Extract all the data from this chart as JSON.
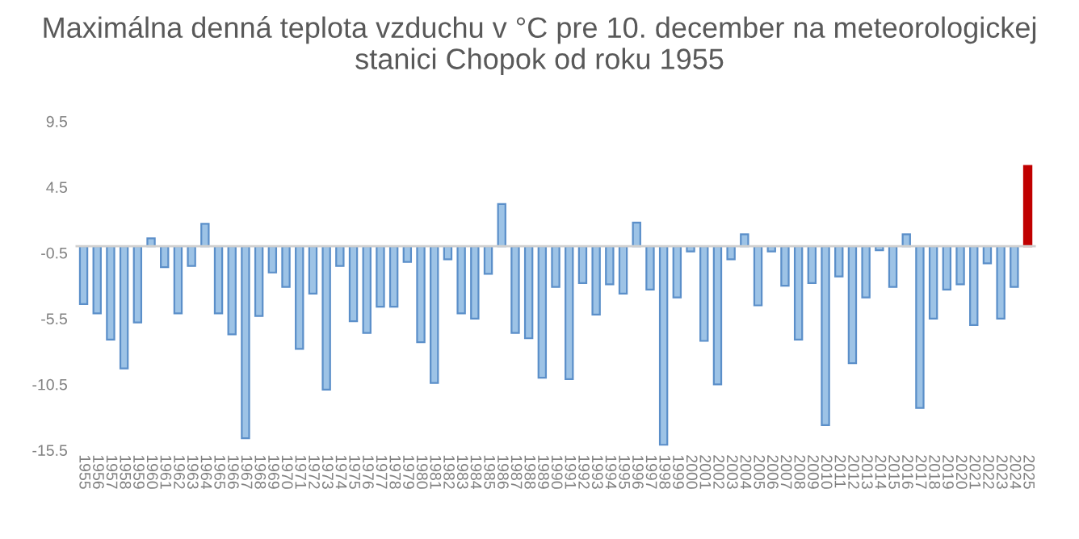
{
  "chart_data": {
    "type": "bar",
    "title": "Maximálna denná teplota vzduchu v °C pre 10. december na meteorologickej stanici Chopok od roku 1955",
    "categories": [
      "1955",
      "1956",
      "1957",
      "1958",
      "1959",
      "1960",
      "1961",
      "1962",
      "1963",
      "1964",
      "1965",
      "1966",
      "1967",
      "1968",
      "1969",
      "1970",
      "1971",
      "1972",
      "1973",
      "1974",
      "1975",
      "1976",
      "1977",
      "1978",
      "1979",
      "1980",
      "1981",
      "1982",
      "1983",
      "1984",
      "1985",
      "1986",
      "1987",
      "1988",
      "1989",
      "1990",
      "1991",
      "1992",
      "1993",
      "1994",
      "1995",
      "1996",
      "1997",
      "1998",
      "1999",
      "2000",
      "2001",
      "2002",
      "2003",
      "2004",
      "2005",
      "2006",
      "2007",
      "2008",
      "2009",
      "2010",
      "2011",
      "2012",
      "2013",
      "2014",
      "2015",
      "2016",
      "2017",
      "2018",
      "2019",
      "2020",
      "2021",
      "2022",
      "2023",
      "2024",
      "2025"
    ],
    "values": [
      -4.4,
      -5.1,
      -7.1,
      -9.3,
      -5.8,
      0.6,
      -1.6,
      -5.1,
      -1.5,
      1.7,
      -5.1,
      -6.7,
      -14.6,
      -5.3,
      -2.0,
      -3.1,
      -7.8,
      -3.6,
      -10.9,
      -1.5,
      -5.7,
      -6.6,
      -4.6,
      -4.6,
      -1.2,
      -7.3,
      -10.4,
      -1.0,
      -5.1,
      -5.5,
      -2.1,
      3.2,
      -6.6,
      -7.0,
      -10.0,
      -3.1,
      -10.1,
      -2.8,
      -5.2,
      -2.9,
      -3.6,
      1.8,
      -3.3,
      -15.1,
      -3.9,
      -0.4,
      -7.2,
      -10.5,
      -1.0,
      0.9,
      -4.5,
      -0.4,
      -3.0,
      -7.1,
      -2.8,
      -13.6,
      -2.3,
      -8.9,
      -3.9,
      -0.3,
      -3.1,
      0.9,
      -12.3,
      -5.5,
      -3.3,
      -2.9,
      -6.0,
      -1.3,
      -5.5,
      -3.1,
      6.1
    ],
    "colors": [
      "#9dc3e6",
      "#9dc3e6",
      "#9dc3e6",
      "#9dc3e6",
      "#9dc3e6",
      "#9dc3e6",
      "#9dc3e6",
      "#9dc3e6",
      "#9dc3e6",
      "#9dc3e6",
      "#9dc3e6",
      "#9dc3e6",
      "#9dc3e6",
      "#9dc3e6",
      "#9dc3e6",
      "#9dc3e6",
      "#9dc3e6",
      "#9dc3e6",
      "#9dc3e6",
      "#9dc3e6",
      "#9dc3e6",
      "#9dc3e6",
      "#9dc3e6",
      "#9dc3e6",
      "#9dc3e6",
      "#9dc3e6",
      "#9dc3e6",
      "#9dc3e6",
      "#9dc3e6",
      "#9dc3e6",
      "#9dc3e6",
      "#9dc3e6",
      "#9dc3e6",
      "#9dc3e6",
      "#9dc3e6",
      "#9dc3e6",
      "#9dc3e6",
      "#9dc3e6",
      "#9dc3e6",
      "#9dc3e6",
      "#9dc3e6",
      "#9dc3e6",
      "#9dc3e6",
      "#9dc3e6",
      "#9dc3e6",
      "#9dc3e6",
      "#9dc3e6",
      "#9dc3e6",
      "#9dc3e6",
      "#9dc3e6",
      "#9dc3e6",
      "#9dc3e6",
      "#9dc3e6",
      "#9dc3e6",
      "#9dc3e6",
      "#9dc3e6",
      "#9dc3e6",
      "#9dc3e6",
      "#9dc3e6",
      "#9dc3e6",
      "#9dc3e6",
      "#9dc3e6",
      "#9dc3e6",
      "#9dc3e6",
      "#9dc3e6",
      "#9dc3e6",
      "#9dc3e6",
      "#9dc3e6",
      "#9dc3e6",
      "#9dc3e6",
      "#c00000"
    ],
    "ylim": [
      -15.5,
      9.5
    ],
    "yticks": [
      9.5,
      4.5,
      -0.5,
      -5.5,
      -10.5,
      -15.5
    ],
    "grid": false,
    "legend": false
  }
}
